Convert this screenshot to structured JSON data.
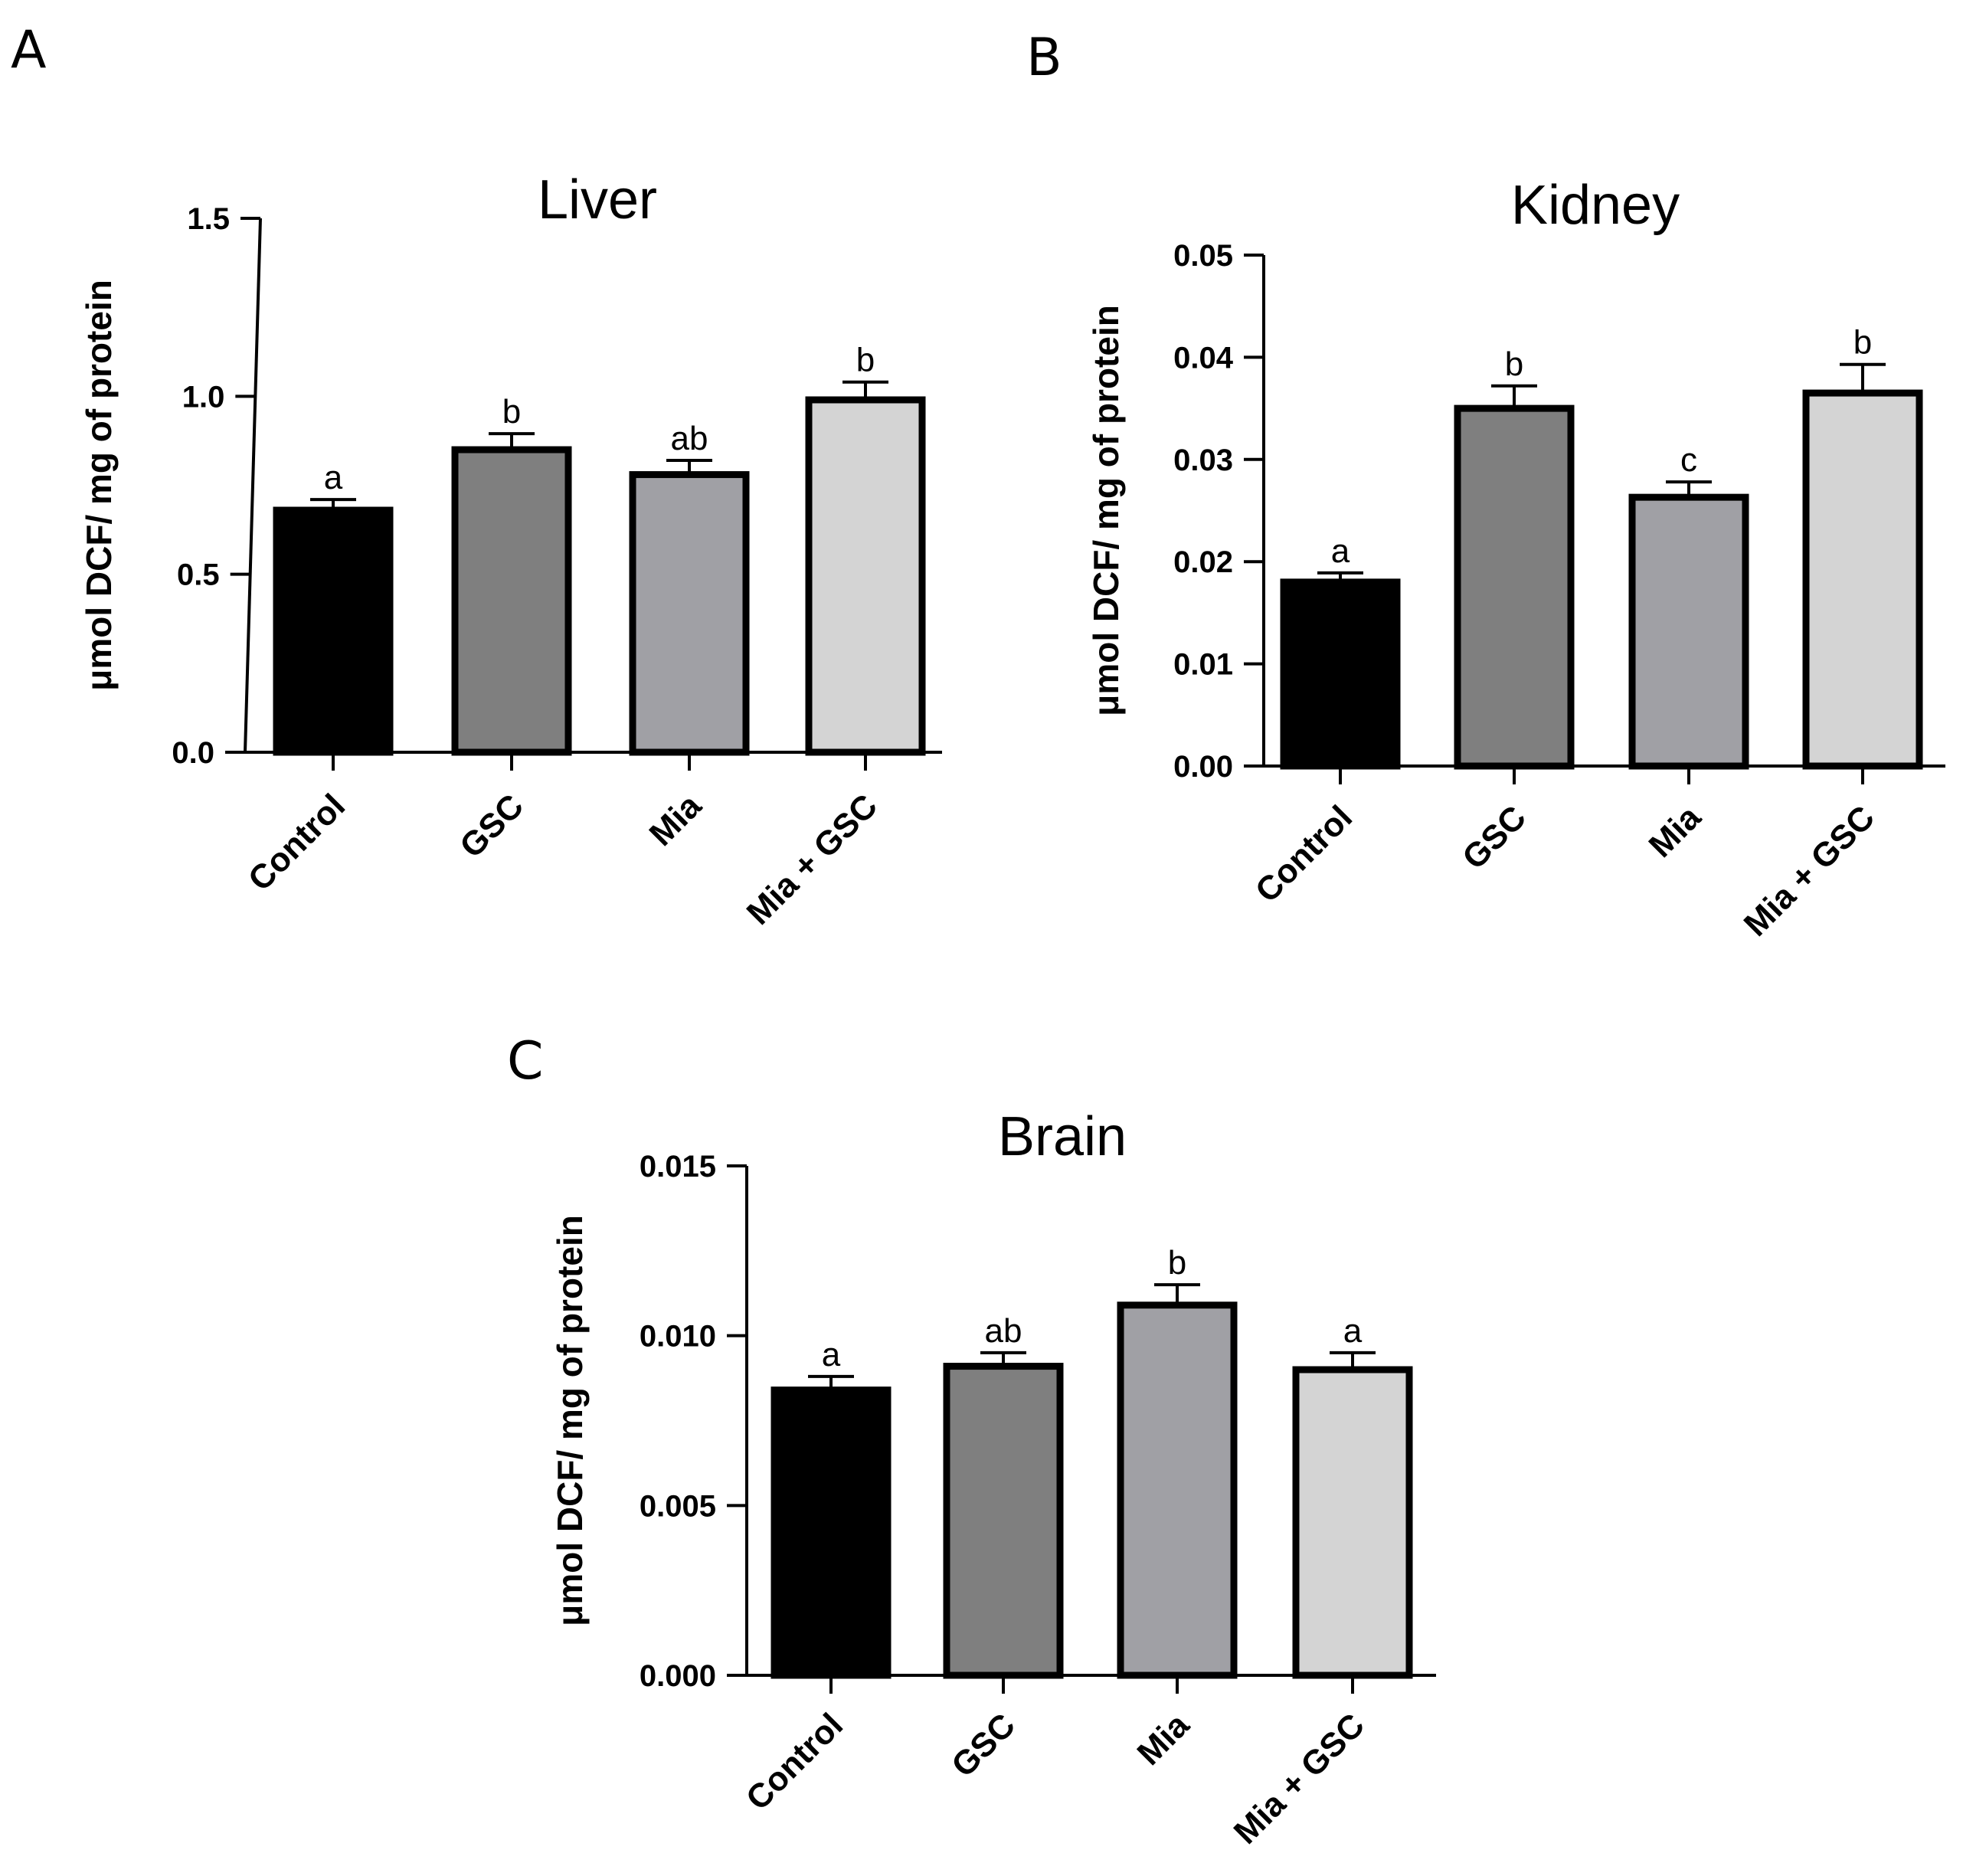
{
  "chart_data": [
    {
      "panel": "A",
      "type": "bar",
      "title": "Liver",
      "ylabel": "μmol DCF/ mg of protein",
      "xlabel": "",
      "categories": [
        "Control",
        "GSC",
        "Mia",
        "Mia + GSC"
      ],
      "values": [
        0.68,
        0.85,
        0.78,
        0.99
      ],
      "errors": [
        0.03,
        0.045,
        0.04,
        0.05
      ],
      "significance": [
        "a",
        "b",
        "ab",
        "b"
      ],
      "colors": [
        "#000000",
        "#7f7f7f",
        "#a0a0a5",
        "#d4d4d4"
      ],
      "ylim": [
        0,
        1.5
      ],
      "yticks": [
        0.0,
        0.5,
        1.0,
        1.5
      ],
      "ytick_labels": [
        "0.0",
        "0.5",
        "1.0",
        "1.5"
      ]
    },
    {
      "panel": "B",
      "type": "bar",
      "title": "Kidney",
      "ylabel": "μmol DCF/ mg of protein",
      "xlabel": "",
      "categories": [
        "Control",
        "GSC",
        "Mia",
        "Mia + GSC"
      ],
      "values": [
        0.018,
        0.035,
        0.0263,
        0.0365
      ],
      "errors": [
        0.0009,
        0.0022,
        0.0015,
        0.0028
      ],
      "significance": [
        "a",
        "b",
        "c",
        "b"
      ],
      "colors": [
        "#000000",
        "#7f7f7f",
        "#a0a0a5",
        "#d4d4d4"
      ],
      "ylim": [
        0,
        0.05
      ],
      "yticks": [
        0.0,
        0.01,
        0.02,
        0.03,
        0.04,
        0.05
      ],
      "ytick_labels": [
        "0.00",
        "0.01",
        "0.02",
        "0.03",
        "0.04",
        "0.05"
      ]
    },
    {
      "panel": "C",
      "type": "bar",
      "title": "Brain",
      "ylabel": "μmol DCF/ mg of protein",
      "xlabel": "",
      "categories": [
        "Control",
        "GSC",
        "Mia",
        "Mia + GSC"
      ],
      "values": [
        0.0084,
        0.0091,
        0.0109,
        0.009
      ],
      "errors": [
        0.0004,
        0.0004,
        0.0006,
        0.0005
      ],
      "significance": [
        "a",
        "ab",
        "b",
        "a"
      ],
      "colors": [
        "#000000",
        "#7f7f7f",
        "#a0a0a5",
        "#d4d4d4"
      ],
      "ylim": [
        0,
        0.015
      ],
      "yticks": [
        0.0,
        0.005,
        0.01,
        0.015
      ],
      "ytick_labels": [
        "0.000",
        "0.005",
        "0.010",
        "0.015"
      ]
    }
  ]
}
